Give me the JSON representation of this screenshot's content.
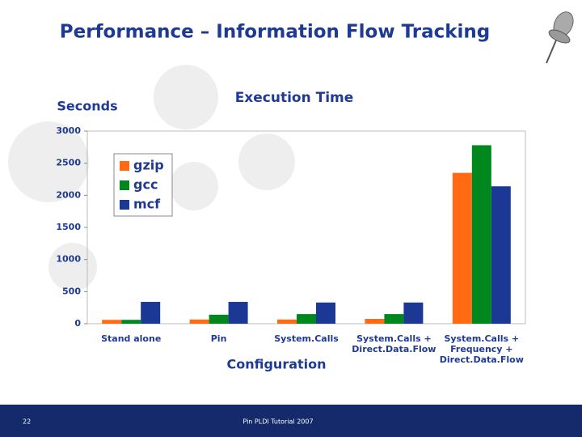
{
  "slide": {
    "title": "Performance – Information Flow Tracking",
    "page_number": "22",
    "footer": "Pin PLDI Tutorial 2007"
  },
  "chart_data": {
    "type": "bar",
    "title": "Execution Time",
    "y_label": "Seconds",
    "x_label": "Configuration",
    "categories": [
      "Stand alone",
      "Pin",
      "System.Calls",
      "System.Calls +\nDirect.Data.Flow",
      "System.Calls +\nFrequency +\nDirect.Data.Flow"
    ],
    "series": [
      {
        "name": "gzip",
        "color": "#ff6a13",
        "values": [
          60,
          65,
          65,
          75,
          2350
        ]
      },
      {
        "name": "gcc",
        "color": "#00881f",
        "values": [
          60,
          140,
          150,
          150,
          2780
        ]
      },
      {
        "name": "mcf",
        "color": "#1b3895",
        "values": [
          340,
          340,
          330,
          330,
          2140
        ]
      }
    ],
    "ylim": [
      0,
      3000
    ],
    "yticks": [
      0,
      500,
      1000,
      1500,
      2000,
      2500,
      3000
    ],
    "grid": false,
    "legend": "upper-left"
  }
}
